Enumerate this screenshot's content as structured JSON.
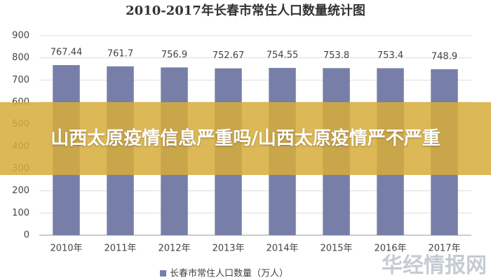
{
  "chart_data": {
    "type": "bar",
    "title": "2010-2017年长春市常住人口数量统计图",
    "categories": [
      "2010年",
      "2011年",
      "2012年",
      "2013年",
      "2014年",
      "2015年",
      "2016年",
      "2017年"
    ],
    "series": [
      {
        "name": "长春市常住人口数量（万人）",
        "color": "#777fa8",
        "values": [
          767.44,
          761.7,
          756.9,
          752.67,
          754.55,
          753.8,
          753.4,
          748.9
        ]
      }
    ],
    "ylim": [
      0,
      900
    ],
    "yticks": [
      0,
      100,
      200,
      300,
      400,
      500,
      600,
      700,
      800,
      900
    ],
    "grid": true
  },
  "banner": {
    "text": "山西太原疫情信息严重吗/山西太原疫情严不严重"
  },
  "watermark": {
    "text": "华经情报网"
  }
}
